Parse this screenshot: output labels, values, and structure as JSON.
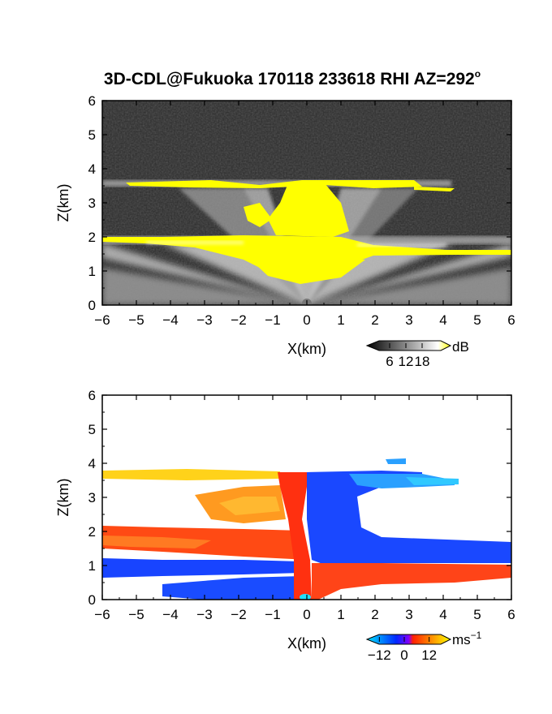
{
  "figure": {
    "title_main": "3D-CDL@Fukuoka 170118 233618 RHI AZ=292",
    "title_sup": "o"
  },
  "chart_data": [
    {
      "type": "heatmap",
      "name": "reflectivity",
      "xlabel": "X(km)",
      "ylabel": "Z(km)",
      "xlim": [
        -6,
        6
      ],
      "ylim": [
        0,
        6
      ],
      "x_ticks": [
        "-6",
        "-5",
        "-4",
        "-3",
        "-2",
        "-1",
        "0",
        "1",
        "2",
        "3",
        "4",
        "5",
        "6"
      ],
      "y_ticks": [
        "0",
        "1",
        "2",
        "3",
        "4",
        "5",
        "6"
      ],
      "colorbar": {
        "unit": "dB",
        "ticks": [
          "6",
          "12",
          "18"
        ],
        "tick_values": [
          6,
          12,
          18
        ],
        "range": [
          0,
          24
        ],
        "colors": [
          "#000000",
          "#ffffff",
          "#ffff00"
        ]
      },
      "colors": {
        "background": "#2a2a2a",
        "echo": "#b8b8b8",
        "strong": "#ffff00"
      }
    },
    {
      "type": "heatmap",
      "name": "doppler_velocity",
      "xlabel": "X(km)",
      "ylabel": "Z(km)",
      "xlim": [
        -6,
        6
      ],
      "ylim": [
        0,
        6
      ],
      "x_ticks": [
        "-6",
        "-5",
        "-4",
        "-3",
        "-2",
        "-1",
        "0",
        "1",
        "2",
        "3",
        "4",
        "5",
        "6"
      ],
      "y_ticks": [
        "0",
        "1",
        "2",
        "3",
        "4",
        "5",
        "6"
      ],
      "colorbar": {
        "unit": "ms",
        "unit_sup": "−1",
        "ticks": [
          "−12",
          "0",
          "12"
        ],
        "tick_values": [
          -12,
          0,
          12
        ],
        "range": [
          -18,
          18
        ],
        "colors": [
          "#00e5ff",
          "#0028ff",
          "#ff2000",
          "#ffff00"
        ]
      },
      "colors": {
        "toward": "#1040ff",
        "away": "#ff3a10",
        "fast_toward": "#20c0ff",
        "fast_away": "#ffd020"
      }
    }
  ]
}
